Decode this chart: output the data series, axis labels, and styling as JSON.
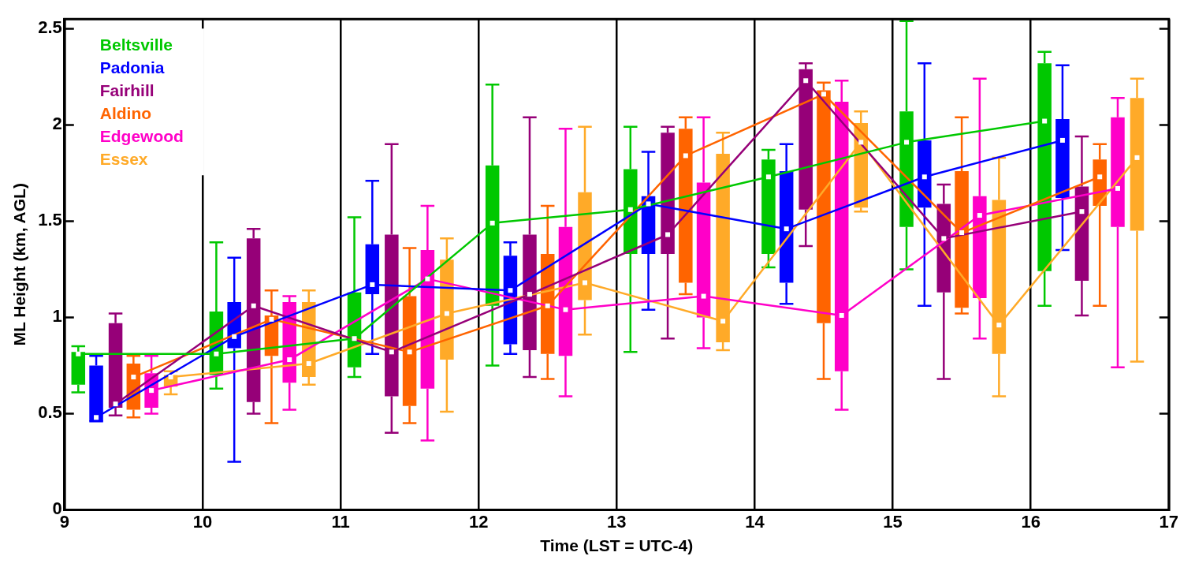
{
  "chart_data": {
    "type": "box",
    "xlabel": "Time (LST = UTC-4)",
    "ylabel": "ML Height (km, AGL)",
    "xlim": [
      9,
      17
    ],
    "xticks": [
      9,
      10,
      11,
      12,
      13,
      14,
      15,
      16,
      17
    ],
    "ylim": [
      0,
      2.55
    ],
    "yticks": [
      0,
      0.5,
      1,
      1.5,
      2,
      2.5
    ],
    "grid": "x",
    "legend": "top left",
    "series": [
      {
        "name": "Beltsville",
        "type": "box",
        "color": "#00c800",
        "x": [
          9.1,
          10.1,
          11.1,
          12.1,
          13.1,
          14.1,
          15.1,
          16.1
        ],
        "boxes": [
          {
            "low": 0.61,
            "q1": 0.65,
            "median": 0.81,
            "q3": 0.82,
            "high": 0.85
          },
          {
            "low": 0.63,
            "q1": 0.7,
            "median": 0.81,
            "q3": 1.03,
            "high": 1.39
          },
          {
            "low": 0.69,
            "q1": 0.74,
            "median": 0.89,
            "q3": 1.13,
            "high": 1.52
          },
          {
            "low": 0.75,
            "q1": 1.06,
            "median": 1.49,
            "q3": 1.79,
            "high": 2.21
          },
          {
            "low": 0.82,
            "q1": 1.33,
            "median": 1.56,
            "q3": 1.77,
            "high": 1.99
          },
          {
            "low": 1.26,
            "q1": 1.33,
            "median": 1.73,
            "q3": 1.82,
            "high": 1.87
          },
          {
            "low": 1.25,
            "q1": 1.47,
            "median": 1.91,
            "q3": 2.07,
            "high": 2.54
          },
          {
            "low": 1.06,
            "q1": 1.24,
            "median": 2.02,
            "q3": 2.32,
            "high": 2.38
          }
        ]
      },
      {
        "name": "Padonia",
        "type": "box",
        "color": "#0000ff",
        "x": [
          9.23,
          10.23,
          11.23,
          12.23,
          13.23,
          14.23,
          15.23,
          16.23
        ],
        "boxes": [
          {
            "low": 0.46,
            "q1": 0.46,
            "median": 0.48,
            "q3": 0.75,
            "high": 0.8
          },
          {
            "low": 0.25,
            "q1": 0.84,
            "median": 0.9,
            "q3": 1.08,
            "high": 1.31
          },
          {
            "low": 0.81,
            "q1": 1.12,
            "median": 1.17,
            "q3": 1.38,
            "high": 1.71
          },
          {
            "low": 0.81,
            "q1": 0.86,
            "median": 1.14,
            "q3": 1.32,
            "high": 1.39
          },
          {
            "low": 1.04,
            "q1": 1.33,
            "median": 1.59,
            "q3": 1.63,
            "high": 1.86
          },
          {
            "low": 1.07,
            "q1": 1.18,
            "median": 1.46,
            "q3": 1.76,
            "high": 1.9
          },
          {
            "low": 1.06,
            "q1": 1.57,
            "median": 1.73,
            "q3": 1.92,
            "high": 2.32
          },
          {
            "low": 1.35,
            "q1": 1.62,
            "median": 1.92,
            "q3": 2.03,
            "high": 2.31
          }
        ]
      },
      {
        "name": "Fairhill",
        "type": "box",
        "color": "#960078",
        "x": [
          9.37,
          10.37,
          11.37,
          12.37,
          13.37,
          14.37,
          15.37,
          16.37
        ],
        "boxes": [
          {
            "low": 0.49,
            "q1": 0.53,
            "median": 0.55,
            "q3": 0.97,
            "high": 1.02
          },
          {
            "low": 0.5,
            "q1": 0.56,
            "median": 1.06,
            "q3": 1.41,
            "high": 1.46
          },
          {
            "low": 0.4,
            "q1": 0.59,
            "median": 0.82,
            "q3": 1.43,
            "high": 1.9
          },
          {
            "low": 0.69,
            "q1": 0.83,
            "median": 1.12,
            "q3": 1.43,
            "high": 2.04
          },
          {
            "low": 0.89,
            "q1": 1.33,
            "median": 1.43,
            "q3": 1.96,
            "high": 1.99
          },
          {
            "low": 1.37,
            "q1": 1.56,
            "median": 2.23,
            "q3": 2.29,
            "high": 2.32
          },
          {
            "low": 0.68,
            "q1": 1.13,
            "median": 1.41,
            "q3": 1.59,
            "high": 1.69
          },
          {
            "low": 1.01,
            "q1": 1.19,
            "median": 1.55,
            "q3": 1.68,
            "high": 1.94
          }
        ]
      },
      {
        "name": "Aldino",
        "type": "box",
        "color": "#ff6400",
        "x": [
          9.5,
          10.5,
          11.5,
          12.5,
          13.5,
          14.5,
          15.5,
          16.5
        ],
        "boxes": [
          {
            "low": 0.48,
            "q1": 0.52,
            "median": 0.69,
            "q3": 0.76,
            "high": 0.8
          },
          {
            "low": 0.45,
            "q1": 0.8,
            "median": 0.99,
            "q3": 1.01,
            "high": 1.14
          },
          {
            "low": 0.45,
            "q1": 0.54,
            "median": 0.82,
            "q3": 1.11,
            "high": 1.36
          },
          {
            "low": 0.68,
            "q1": 0.81,
            "median": 1.06,
            "q3": 1.33,
            "high": 1.58
          },
          {
            "low": 1.12,
            "q1": 1.18,
            "median": 1.84,
            "q3": 1.98,
            "high": 2.04
          },
          {
            "low": 0.68,
            "q1": 0.97,
            "median": 2.16,
            "q3": 2.18,
            "high": 2.22
          },
          {
            "low": 1.02,
            "q1": 1.05,
            "median": 1.44,
            "q3": 1.76,
            "high": 2.04
          },
          {
            "low": 1.06,
            "q1": 1.58,
            "median": 1.73,
            "q3": 1.82,
            "high": 1.9
          }
        ]
      },
      {
        "name": "Edgewood",
        "type": "box",
        "color": "#ff00c8",
        "x": [
          9.63,
          10.63,
          11.63,
          12.63,
          13.63,
          14.63,
          15.63,
          16.63
        ],
        "boxes": [
          {
            "low": 0.5,
            "q1": 0.53,
            "median": 0.62,
            "q3": 0.71,
            "high": 0.8
          },
          {
            "low": 0.52,
            "q1": 0.66,
            "median": 0.78,
            "q3": 1.08,
            "high": 1.11
          },
          {
            "low": 0.36,
            "q1": 0.63,
            "median": 1.2,
            "q3": 1.35,
            "high": 1.58
          },
          {
            "low": 0.59,
            "q1": 0.8,
            "median": 1.04,
            "q3": 1.47,
            "high": 1.98
          },
          {
            "low": 0.84,
            "q1": 1.0,
            "median": 1.11,
            "q3": 1.7,
            "high": 2.04
          },
          {
            "low": 0.52,
            "q1": 0.72,
            "median": 1.01,
            "q3": 2.12,
            "high": 2.23
          },
          {
            "low": 0.89,
            "q1": 1.1,
            "median": 1.53,
            "q3": 1.63,
            "high": 2.24
          },
          {
            "low": 0.74,
            "q1": 1.47,
            "median": 1.67,
            "q3": 2.04,
            "high": 2.14
          }
        ]
      },
      {
        "name": "Essex",
        "type": "box",
        "color": "#ffaa28",
        "x": [
          9.77,
          10.77,
          11.77,
          12.77,
          13.77,
          14.77,
          15.77,
          16.77
        ],
        "boxes": [
          {
            "low": 0.6,
            "q1": 0.64,
            "median": 0.69,
            "q3": 0.7,
            "high": 0.72
          },
          {
            "low": 0.65,
            "q1": 0.69,
            "median": 0.76,
            "q3": 1.08,
            "high": 1.14
          },
          {
            "low": 0.51,
            "q1": 0.78,
            "median": 1.02,
            "q3": 1.3,
            "high": 1.41
          },
          {
            "low": 0.91,
            "q1": 1.09,
            "median": 1.18,
            "q3": 1.65,
            "high": 1.99
          },
          {
            "low": 0.83,
            "q1": 0.87,
            "median": 0.98,
            "q3": 1.85,
            "high": 1.96
          },
          {
            "low": 1.55,
            "q1": 1.57,
            "median": 1.91,
            "q3": 2.01,
            "high": 2.07
          },
          {
            "low": 0.59,
            "q1": 0.81,
            "median": 0.96,
            "q3": 1.61,
            "high": 1.83
          },
          {
            "low": 0.77,
            "q1": 1.45,
            "median": 1.83,
            "q3": 2.14,
            "high": 2.24
          }
        ]
      },
      {
        "type": "line",
        "color": "#00c800",
        "x": [
          9.1,
          10.1,
          11.1,
          12.1,
          13.1,
          14.1,
          15.1,
          16.1
        ],
        "values": [
          0.81,
          0.81,
          0.89,
          1.49,
          1.56,
          1.73,
          1.91,
          2.02
        ]
      },
      {
        "type": "line",
        "color": "#0000ff",
        "x": [
          9.23,
          10.23,
          11.23,
          12.23,
          13.23,
          14.23,
          15.23,
          16.23
        ],
        "values": [
          0.48,
          0.9,
          1.17,
          1.14,
          1.59,
          1.46,
          1.73,
          1.92
        ]
      },
      {
        "type": "line",
        "color": "#960078",
        "x": [
          9.37,
          10.37,
          11.37,
          12.37,
          13.37,
          14.37,
          15.37,
          16.37
        ],
        "values": [
          0.55,
          1.06,
          0.82,
          1.12,
          1.43,
          2.23,
          1.41,
          1.55
        ]
      },
      {
        "type": "line",
        "color": "#ff6400",
        "x": [
          9.5,
          10.5,
          11.5,
          12.5,
          13.5,
          14.5,
          15.5,
          16.5
        ],
        "values": [
          0.69,
          0.99,
          0.82,
          1.06,
          1.84,
          2.16,
          1.44,
          1.73
        ]
      },
      {
        "type": "line",
        "color": "#ff00c8",
        "x": [
          9.63,
          10.63,
          11.63,
          12.63,
          13.63,
          14.63,
          15.63,
          16.63
        ],
        "values": [
          0.62,
          0.78,
          1.2,
          1.04,
          1.11,
          1.01,
          1.53,
          1.67
        ]
      },
      {
        "type": "line",
        "color": "#ffaa28",
        "x": [
          9.77,
          10.77,
          11.77,
          12.77,
          13.77,
          14.77,
          15.77,
          16.77
        ],
        "values": [
          0.69,
          0.76,
          1.02,
          1.18,
          0.98,
          1.91,
          0.96,
          1.83
        ]
      }
    ]
  }
}
